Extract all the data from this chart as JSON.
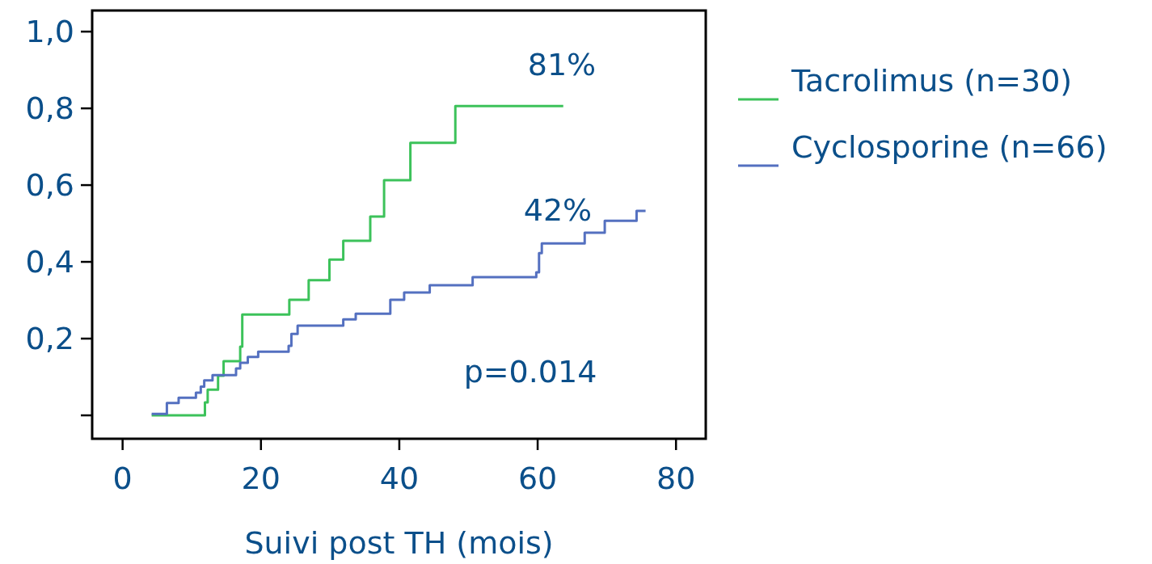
{
  "chart_data": {
    "type": "step",
    "xlabel": "Suivi post TH (mois)",
    "xlim": [
      -4.4,
      84.3
    ],
    "ylim": [
      -0.061,
      1.055
    ],
    "xticks": [
      0,
      20,
      40,
      60,
      80
    ],
    "yticks": [
      {
        "value": 0,
        "label": null
      },
      {
        "value": 0.2,
        "label": "0,2"
      },
      {
        "value": 0.4,
        "label": "0,4"
      },
      {
        "value": 0.6,
        "label": "0,6"
      },
      {
        "value": 0.8,
        "label": "0,8"
      },
      {
        "value": 1,
        "label": "1,0"
      }
    ],
    "legend": "right",
    "grid": false,
    "marker": "none",
    "line_style": "solid",
    "series": [
      {
        "name": "Tacrolimus (n=30)",
        "color": "#3cc25a",
        "x": [
          4.2,
          11.9,
          12.3,
          13.8,
          14.6,
          17.0,
          17.3,
          24.1,
          26.9,
          29.9,
          31.9,
          35.8,
          37.8,
          41.6,
          48.1,
          63.7
        ],
        "values": [
          0,
          0.034,
          0.067,
          0.103,
          0.141,
          0.179,
          0.263,
          0.301,
          0.352,
          0.406,
          0.455,
          0.518,
          0.613,
          0.71,
          0.806,
          0.806
        ]
      },
      {
        "name": "Cyclosporine (n=66)",
        "color": "#5470c0",
        "x": [
          4.2,
          6.4,
          8.1,
          10.6,
          11.3,
          11.8,
          13.0,
          16.4,
          17.0,
          18.1,
          19.6,
          24.0,
          24.4,
          25.3,
          31.9,
          33.7,
          38.7,
          40.7,
          44.4,
          50.6,
          59.8,
          60.2,
          60.6,
          66.8,
          69.7,
          74.3,
          75.6
        ],
        "values": [
          0.004,
          0.032,
          0.046,
          0.059,
          0.075,
          0.091,
          0.105,
          0.122,
          0.137,
          0.152,
          0.166,
          0.181,
          0.212,
          0.234,
          0.25,
          0.265,
          0.301,
          0.32,
          0.339,
          0.36,
          0.373,
          0.423,
          0.448,
          0.476,
          0.507,
          0.533,
          0.533
        ]
      }
    ],
    "annotations": [
      "81%",
      "42%",
      "p=0.014"
    ]
  }
}
